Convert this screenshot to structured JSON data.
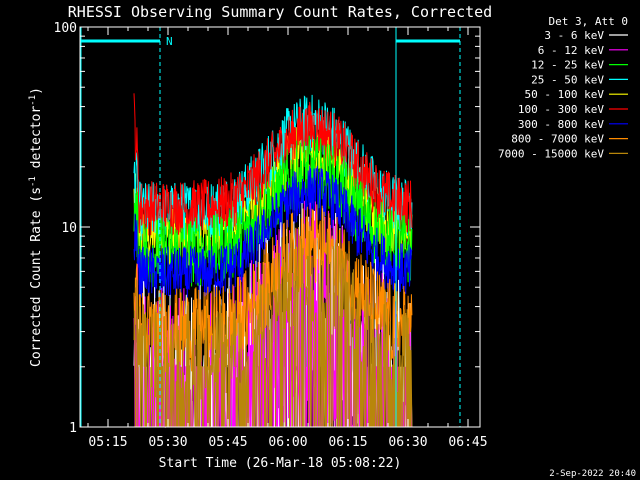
{
  "chart_data": {
    "type": "line",
    "title": "RHESSI Observing Summary Count Rates, Corrected",
    "xlabel": "Start Time (26-Mar-18 05:08:22)",
    "ylabel_main": "Corrected Count Rate (s",
    "ylabel_sup1": "-1",
    "ylabel_mid": " detector",
    "ylabel_sup2": "-1",
    "ylabel_end": ")",
    "y_scale": "log",
    "ylim": [
      1,
      100
    ],
    "xlim": [
      "05:08",
      "06:48"
    ],
    "x_ticks": [
      "05:15",
      "05:30",
      "05:45",
      "06:00",
      "06:15",
      "06:30",
      "06:45"
    ],
    "y_ticks": [
      "1",
      "10",
      "100"
    ],
    "legend_title": "Det 3, Att 0",
    "legend_position": "top-right",
    "attenuator_marker": "N",
    "timestamp": "2-Sep-2022 20:40",
    "data_start": "05:21",
    "data_end": "06:31",
    "series": [
      {
        "name": "3 - 6 keV",
        "color": "#ffffff",
        "base": 1.8,
        "peak": 4.5,
        "spread": 0.5
      },
      {
        "name": "6 - 12 keV",
        "color": "#ff00ff",
        "base": 1.4,
        "peak": 4.0,
        "spread": 0.55
      },
      {
        "name": "12 - 25 keV",
        "color": "#00ff00",
        "base": 7.5,
        "peak": 19,
        "spread": 0.18
      },
      {
        "name": "25 - 50 keV",
        "color": "#00ffff",
        "base": 12,
        "peak": 33,
        "spread": 0.15
      },
      {
        "name": "50 - 100 keV",
        "color": "#ffff00",
        "base": 9.0,
        "peak": 24,
        "spread": 0.15
      },
      {
        "name": "100 - 300 keV",
        "color": "#ff0000",
        "base": 12.5,
        "peak": 31,
        "spread": 0.14
      },
      {
        "name": "300 - 800 keV",
        "color": "#0000ff",
        "base": 5.8,
        "peak": 15,
        "spread": 0.14
      },
      {
        "name": "800 - 7000 keV",
        "color": "#ff8c00",
        "base": 3.0,
        "peak": 8.0,
        "spread": 0.22
      },
      {
        "name": "7000 - 15000 keV",
        "color": "#b8860b",
        "base": 2.4,
        "peak": 6.0,
        "spread": 0.25
      }
    ],
    "flare_peak_time": "06:06",
    "flare_width_min": 12
  }
}
